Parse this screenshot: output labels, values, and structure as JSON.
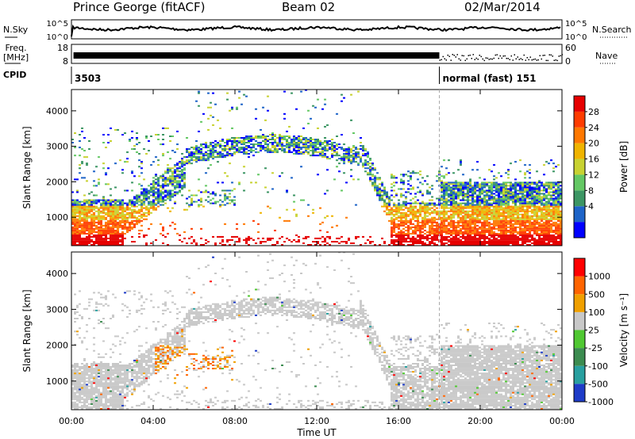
{
  "header": {
    "station": "Prince George (fitACF)",
    "beam": "Beam 02",
    "date": "02/Mar/2014"
  },
  "sky_panel": {
    "left_label": "N.Sky",
    "right_label": "N.Search",
    "ticks_left": [
      "10^5",
      "10^0"
    ],
    "ticks_right": [
      "10^5",
      "10^0"
    ]
  },
  "freq_panel": {
    "left_label_line1": "Freq.",
    "left_label_line2": "[MHz]",
    "right_label": "Nave",
    "ticks_left": [
      "18",
      "8"
    ],
    "ticks_right": [
      "60",
      "0"
    ]
  },
  "cpid_panel": {
    "label": "CPID",
    "segments": [
      {
        "text": "3503",
        "start_hour": 0
      },
      {
        "text": "normal (fast) 151",
        "start_hour": 18
      }
    ]
  },
  "chart_data": [
    {
      "type": "heatmap",
      "name": "power",
      "ylabel": "Slant Range [km]",
      "ylim": [
        200,
        4600
      ],
      "yticks": [
        1000,
        2000,
        3000,
        4000
      ],
      "colorbar_label": "Power [dB]",
      "colorbar_ticks": [
        "28",
        "24",
        "20",
        "16",
        "12",
        "8",
        "4"
      ],
      "colors": [
        "#0000ff",
        "#1e64c8",
        "#3c9664",
        "#64c864",
        "#c8d232",
        "#f0b400",
        "#ff7800",
        "#ff3c00",
        "#e60000"
      ]
    },
    {
      "type": "heatmap",
      "name": "velocity",
      "ylabel": "Slant Range [km]",
      "ylim": [
        200,
        4600
      ],
      "yticks": [
        1000,
        2000,
        3000,
        4000
      ],
      "colorbar_label": "Velocity [m s⁻¹]",
      "colorbar_ticks": [
        "1000",
        "500",
        "100",
        "25",
        "-25",
        "-100",
        "-500",
        "-1000"
      ],
      "colors": [
        "#1e3cc8",
        "#28a0a0",
        "#3c8c50",
        "#50c832",
        "#c8c8c8",
        "#f0a000",
        "#ff6400",
        "#ff0000"
      ]
    }
  ],
  "xaxis": {
    "label": "Time UT",
    "ticks": [
      "00:00",
      "04:00",
      "08:00",
      "12:00",
      "16:00",
      "20:00",
      "00:00"
    ],
    "range_hours": [
      0,
      24
    ]
  }
}
